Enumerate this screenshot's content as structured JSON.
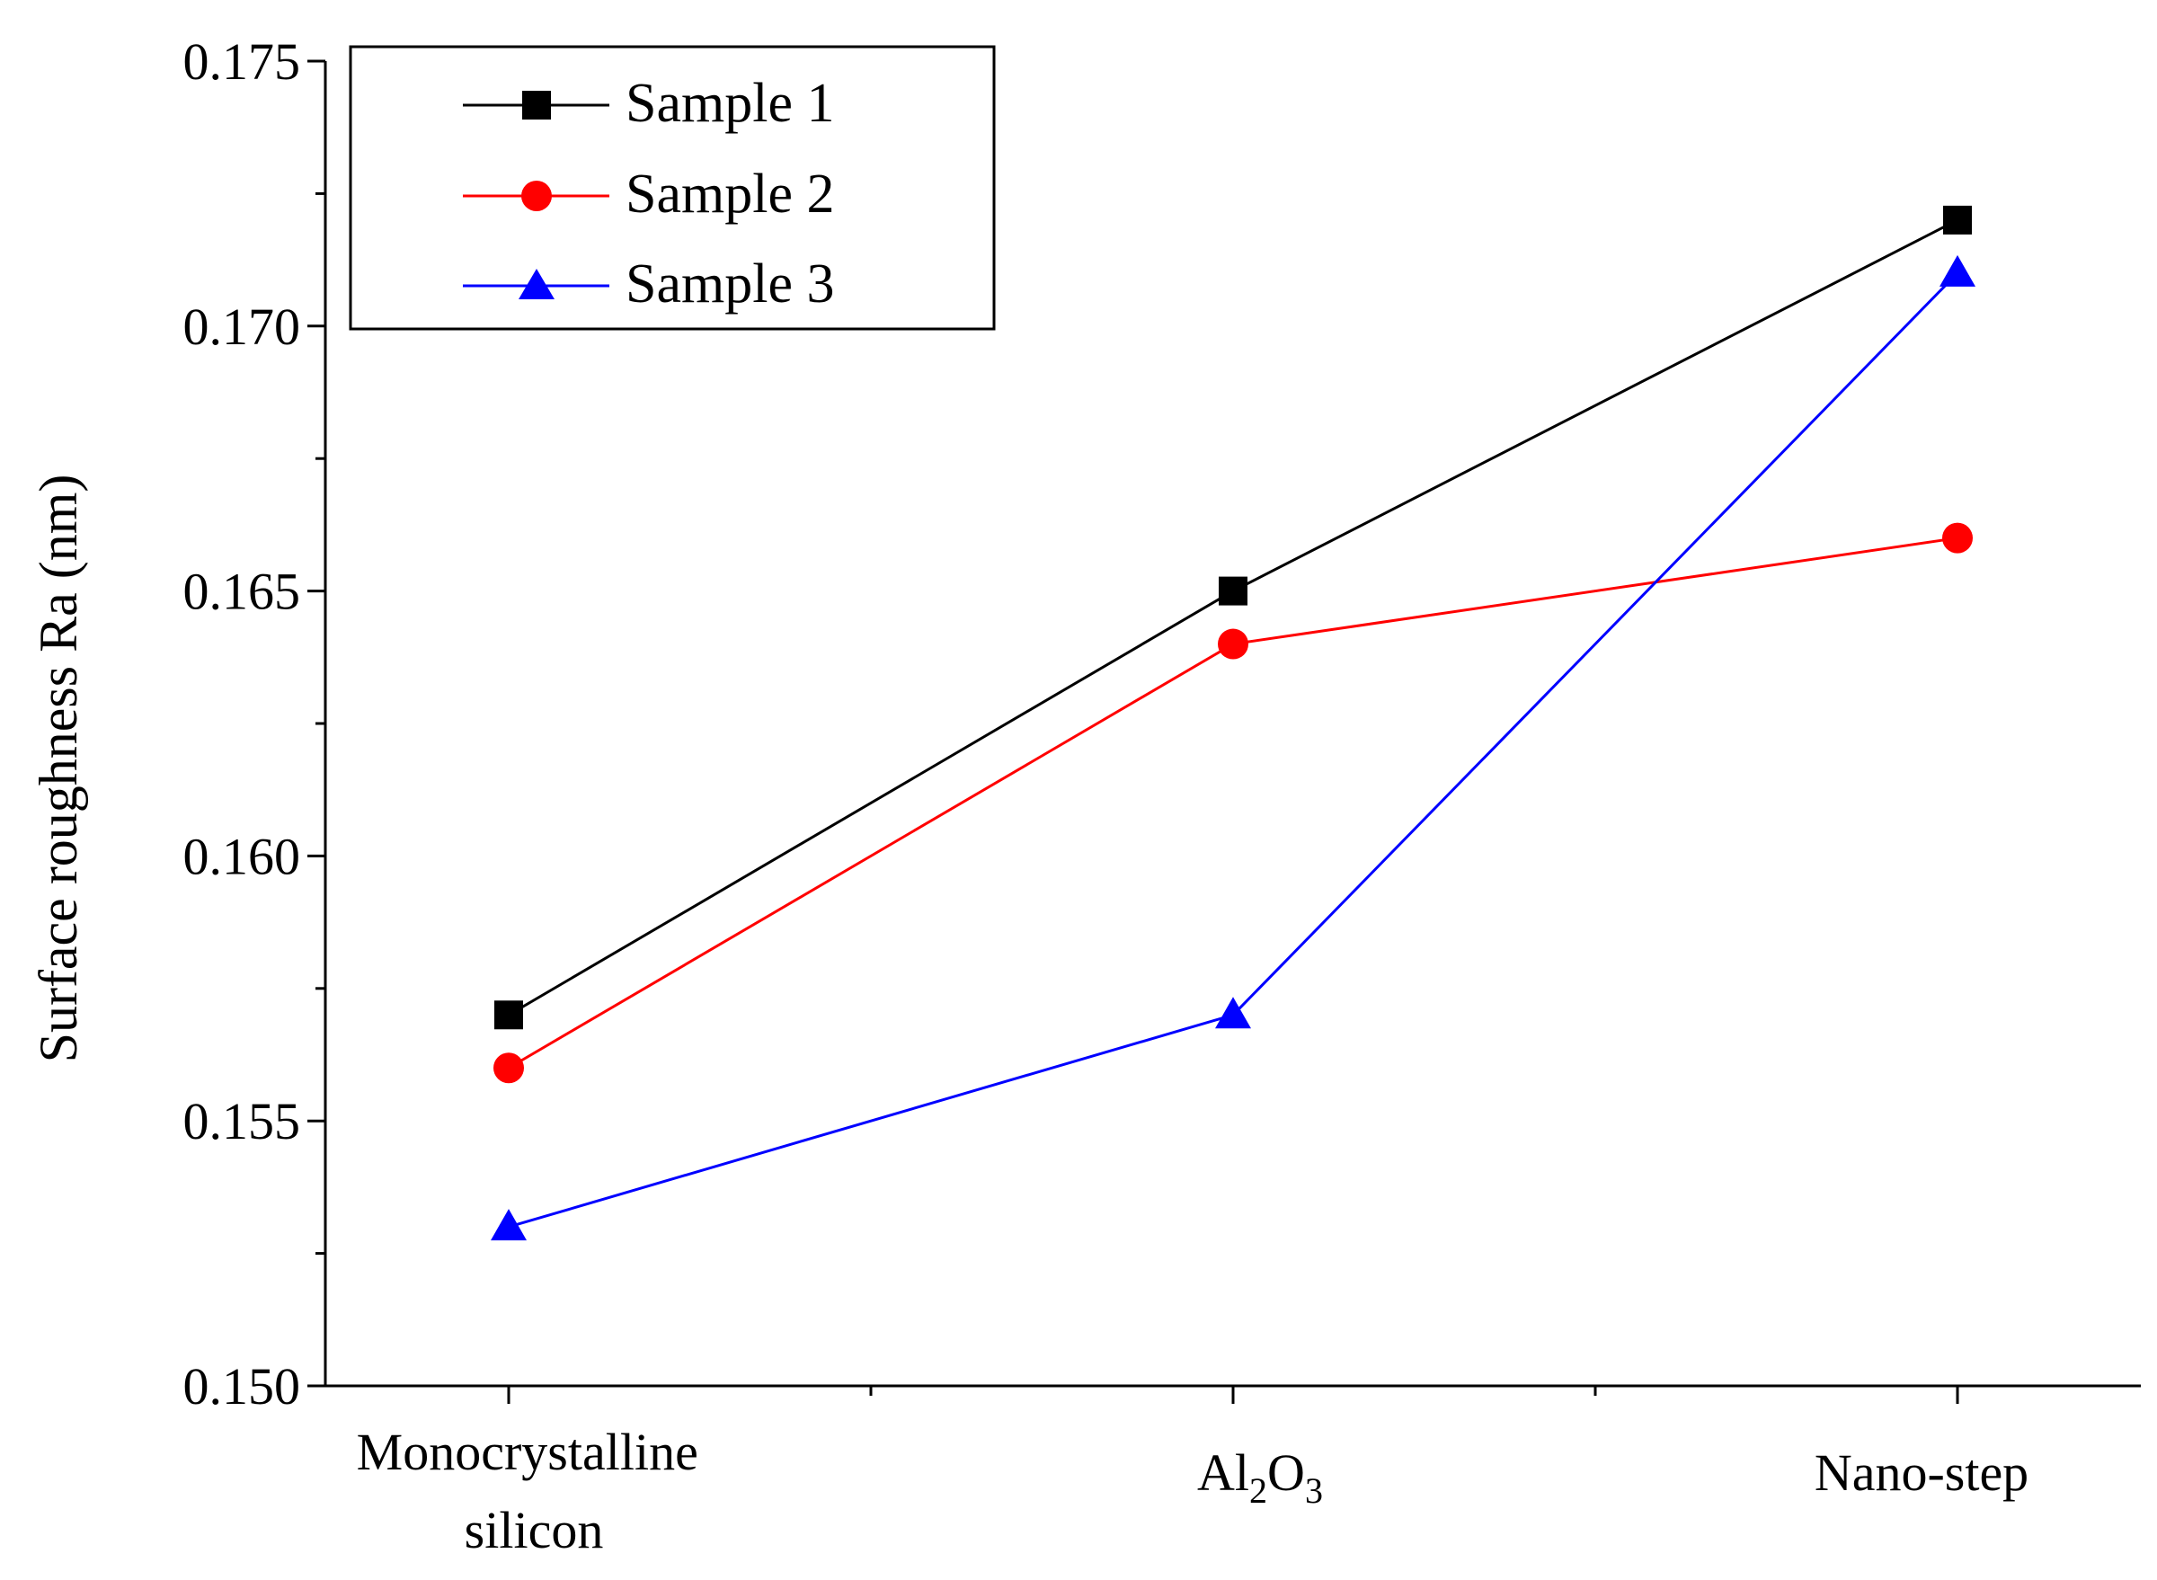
{
  "chart_data": {
    "type": "line",
    "title": "",
    "xlabel": "",
    "ylabel": "Surface roughness Ra (nm)",
    "categories": [
      {
        "id": "monocrystalline-silicon",
        "lines": [
          "Monocrystalline",
          "silicon"
        ]
      },
      {
        "id": "al2o3",
        "main": "Al",
        "sub1": "2",
        "mid": "O",
        "sub2": "3"
      },
      {
        "id": "nano-step",
        "lines": [
          "Nano-step"
        ]
      }
    ],
    "ylim": [
      0.15,
      0.175
    ],
    "yticks": [
      "0.150",
      "0.155",
      "0.160",
      "0.165",
      "0.170",
      "0.175"
    ],
    "ytick_values": [
      0.15,
      0.155,
      0.16,
      0.165,
      0.17,
      0.175
    ],
    "grid": false,
    "legend_position": "top-left",
    "series": [
      {
        "name": "Sample 1",
        "color": "#000000",
        "marker": "square",
        "values": [
          0.157,
          0.165,
          0.172
        ]
      },
      {
        "name": "Sample 2",
        "color": "#ff0000",
        "marker": "circle",
        "values": [
          0.156,
          0.164,
          0.166
        ]
      },
      {
        "name": "Sample 3",
        "color": "#0000ff",
        "marker": "triangle",
        "values": [
          0.153,
          0.157,
          0.171
        ]
      }
    ]
  }
}
